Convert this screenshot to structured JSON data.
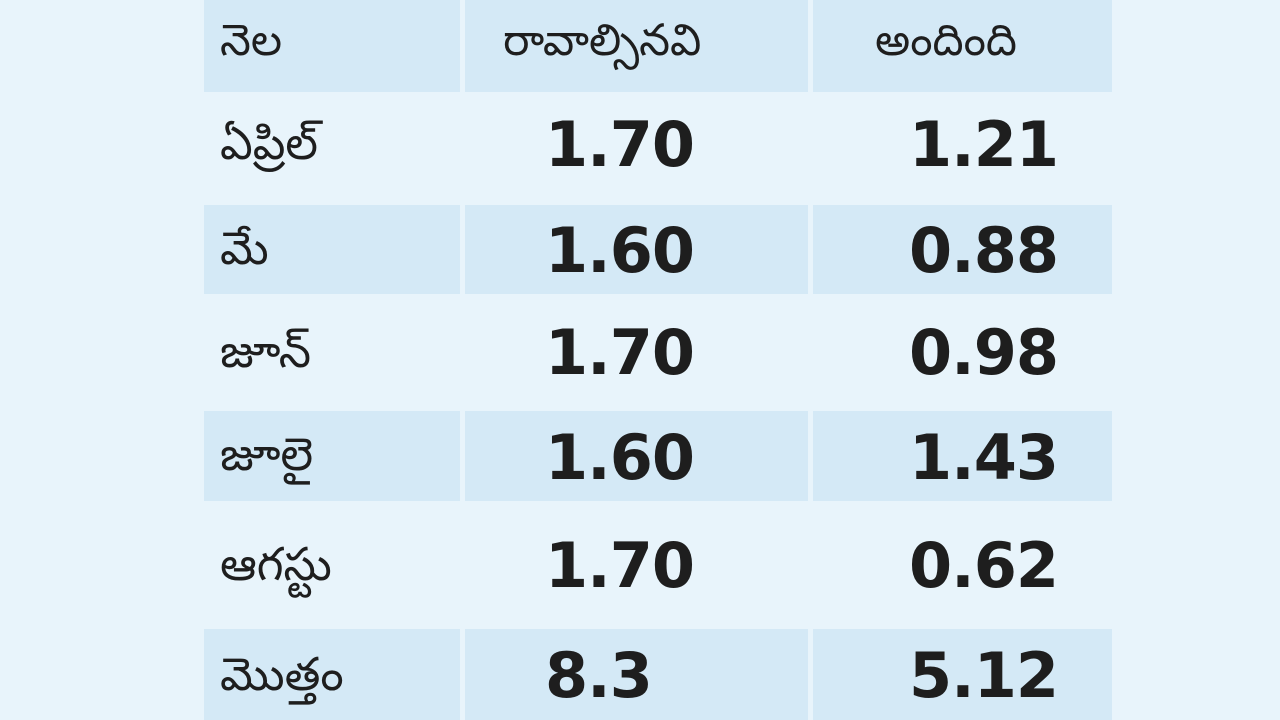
{
  "table": {
    "headers": [
      "నెల",
      "రావాల్సినవి",
      "అందింది"
    ],
    "rows": [
      {
        "month": "ఏప్రిల్",
        "due": "1.70",
        "received": "1.21"
      },
      {
        "month": "మే",
        "due": "1.60",
        "received": "0.88"
      },
      {
        "month": "జూన్",
        "due": "1.70",
        "received": "0.98"
      },
      {
        "month": "జూలై",
        "due": "1.60",
        "received": "1.43"
      },
      {
        "month": "ఆగస్టు",
        "due": "1.70",
        "received": "0.62"
      },
      {
        "month": "మొత్తం",
        "due": "8.3",
        "received": "5.12"
      }
    ]
  },
  "colors": {
    "page_background": "#e8f4fb",
    "shaded_row": "#d4e9f6",
    "text": "#1e1e1e"
  }
}
